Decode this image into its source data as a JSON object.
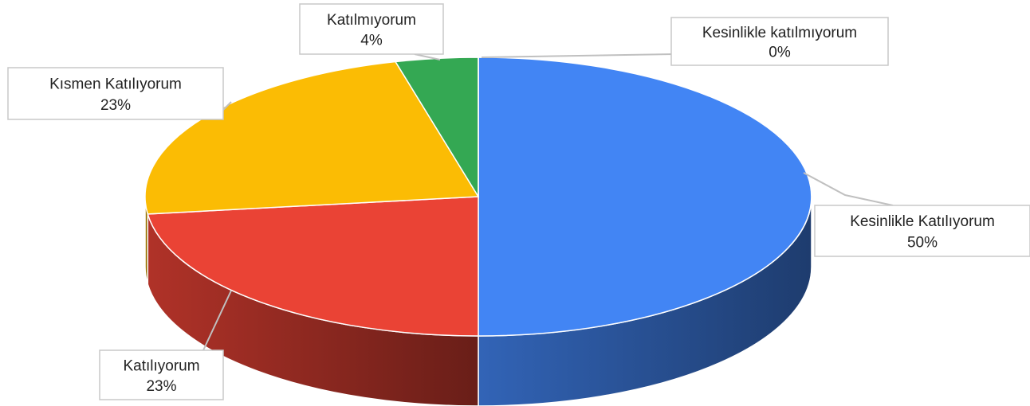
{
  "chart_data": {
    "type": "pie",
    "three_d": true,
    "categories": [
      "Kesinlikle Katılıyorum",
      "Katılıyorum",
      "Kısmen Katılıyorum",
      "Katılmıyorum",
      "Kesinlikle katılmıyorum"
    ],
    "values": [
      50,
      23,
      23,
      4,
      0
    ],
    "value_labels": [
      "50%",
      "23%",
      "23%",
      "4%",
      "0%"
    ],
    "colors": [
      "#4285f4",
      "#ea4335",
      "#fbbc04",
      "#34a853",
      "#ff6d01"
    ]
  }
}
